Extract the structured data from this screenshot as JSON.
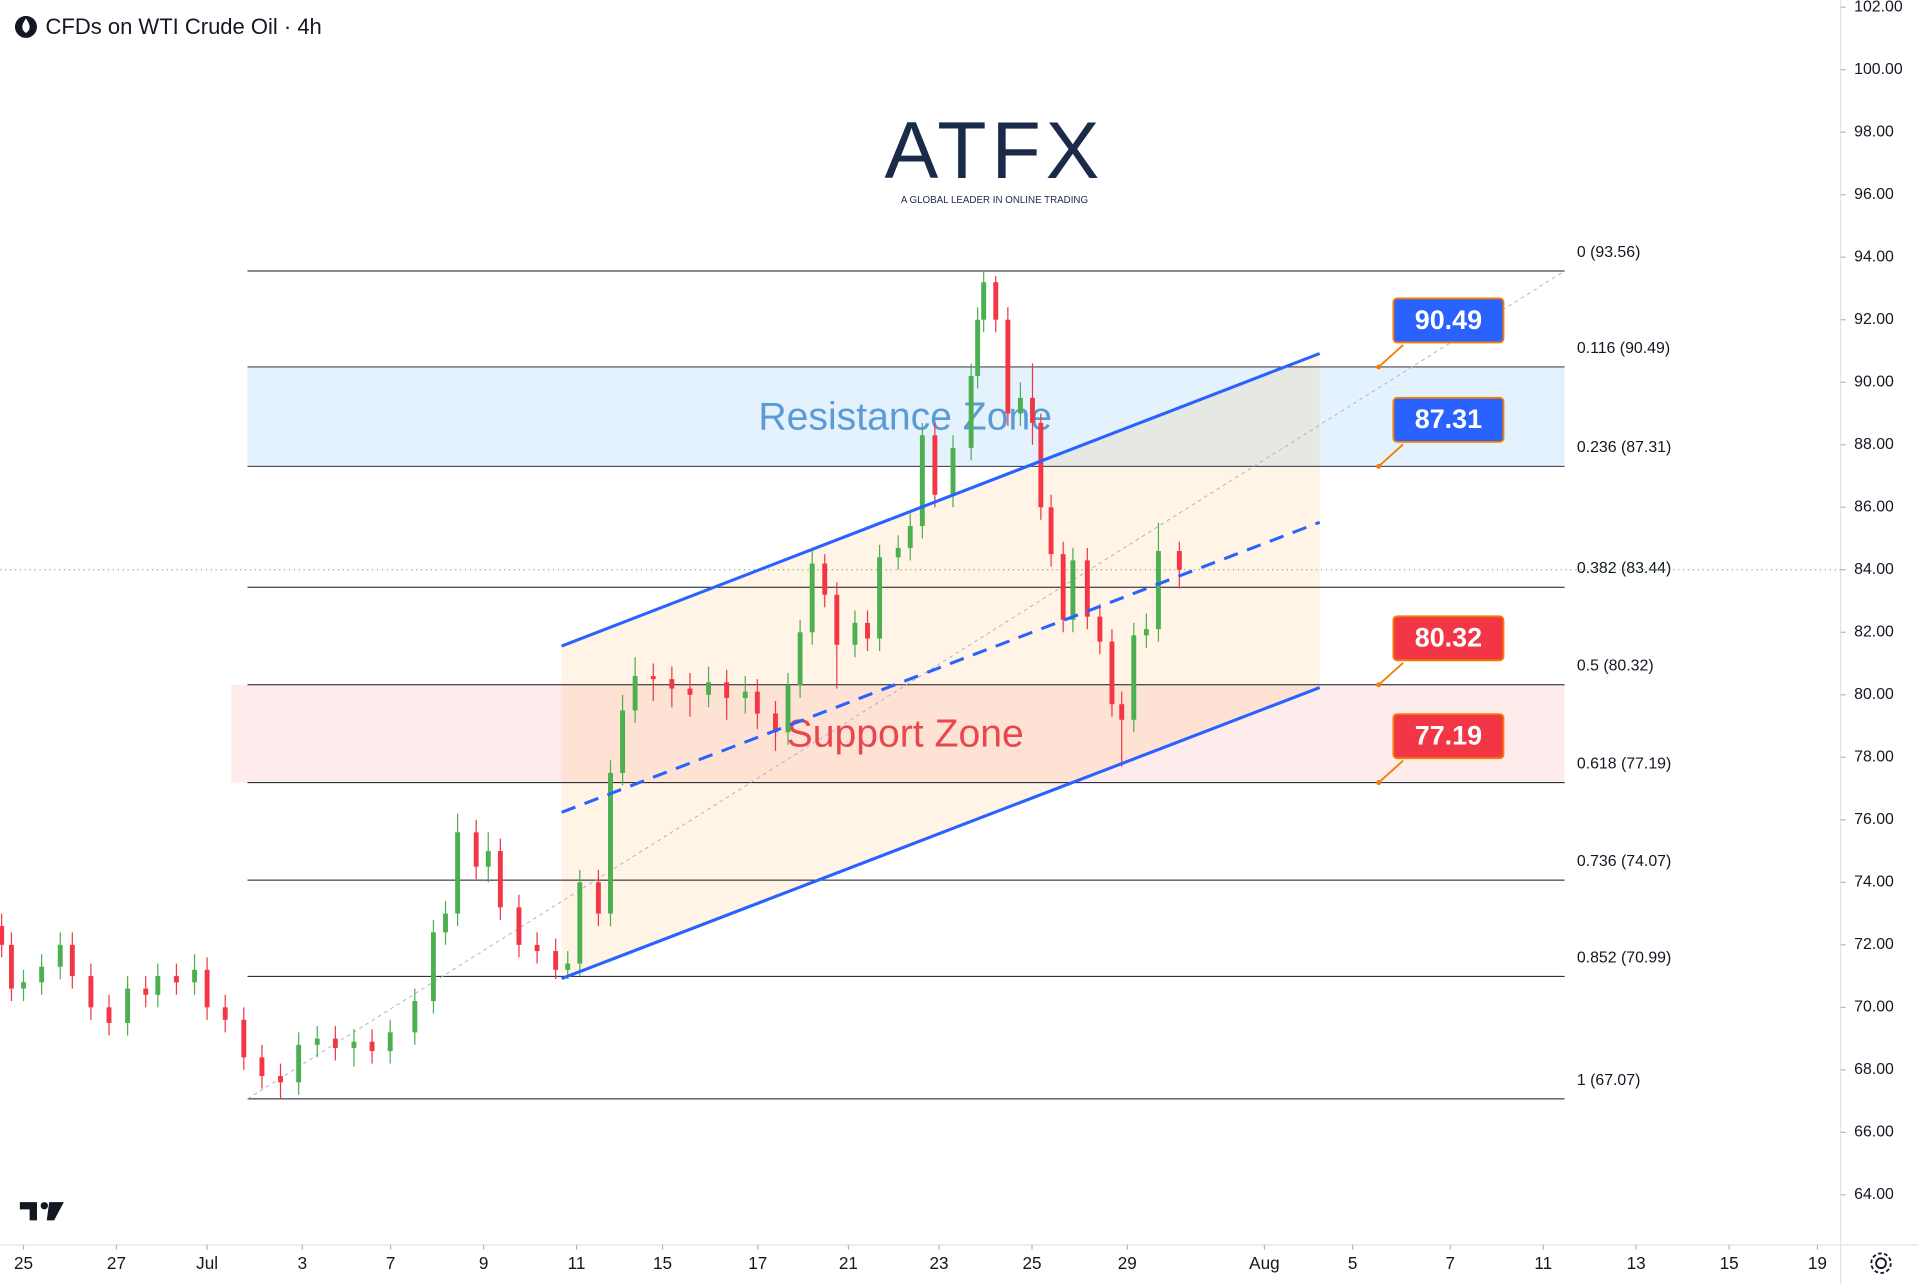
{
  "chart_data": {
    "type": "candlestick",
    "title": "CFDs on WTI Crude Oil · 4h",
    "logo": {
      "name": "ATFX",
      "tagline": "A GLOBAL LEADER IN ONLINE TRADING"
    },
    "up_color": "#4caf50",
    "down_color": "#f23645",
    "x": [
      -0.47,
      -0.26,
      0,
      0.39,
      0.79,
      1.05,
      1.45,
      1.84,
      2.24,
      2.63,
      2.89,
      3.29,
      3.68,
      3.95,
      4.34,
      4.74,
      5.13,
      5.53,
      5.92,
      6.32,
      6.71,
      7.11,
      7.5,
      7.89,
      8.42,
      8.82,
      9.08,
      9.34,
      9.74,
      10,
      10.26,
      10.66,
      11.05,
      11.45,
      11.71,
      11.97,
      12.37,
      12.63,
      12.89,
      13.16,
      13.55,
      13.95,
      14.34,
      14.74,
      15.13,
      15.53,
      15.79,
      16.18,
      16.45,
      16.71,
      16.97,
      17.24,
      17.5,
      17.89,
      18.16,
      18.42,
      18.82,
      19.08,
      19.34,
      19.61,
      20,
      20.39,
      20.53,
      20.66,
      20.92,
      21.18,
      21.45,
      21.71,
      21.89,
      22.11,
      22.37,
      22.58,
      22.89,
      23.16,
      23.42,
      23.63,
      23.89,
      24.16,
      24.42,
      24.87
    ],
    "open": [
      72.6,
      72.0,
      70.6,
      70.8,
      71.3,
      72.0,
      71.0,
      70.0,
      69.5,
      70.6,
      70.4,
      71.0,
      70.8,
      71.2,
      70.0,
      69.6,
      68.4,
      67.8,
      67.6,
      68.8,
      69.0,
      68.7,
      68.9,
      68.6,
      69.2,
      70.2,
      72.4,
      73.0,
      75.6,
      74.5,
      75.0,
      73.2,
      72.0,
      71.8,
      71.2,
      71.4,
      74.0,
      73.0,
      77.5,
      79.5,
      80.6,
      80.5,
      80.2,
      80.0,
      80.4,
      79.9,
      80.1,
      79.4,
      78.8,
      80.3,
      82.0,
      84.2,
      83.2,
      81.6,
      82.3,
      81.8,
      84.4,
      84.7,
      85.4,
      88.3,
      86.4,
      87.9,
      90.2,
      92.0,
      93.2,
      92.0,
      89.0,
      89.5,
      88.7,
      86.0,
      84.5,
      82.4,
      84.3,
      82.5,
      81.7,
      79.7,
      79.2,
      81.9,
      82.1,
      84.6
    ],
    "high": [
      73.0,
      72.4,
      71.2,
      71.7,
      72.4,
      72.4,
      71.4,
      70.4,
      71.0,
      71.0,
      71.4,
      71.4,
      71.7,
      71.6,
      70.4,
      70.0,
      68.8,
      68.2,
      69.2,
      69.4,
      69.4,
      69.3,
      69.3,
      69.6,
      70.6,
      72.8,
      73.4,
      76.2,
      76.0,
      75.6,
      75.4,
      73.6,
      72.4,
      72.2,
      71.8,
      74.4,
      74.4,
      77.9,
      80.0,
      81.2,
      81.0,
      80.9,
      80.7,
      80.9,
      80.8,
      80.6,
      80.5,
      79.8,
      80.7,
      82.4,
      84.6,
      84.5,
      83.6,
      82.7,
      82.7,
      84.8,
      85.1,
      85.8,
      88.7,
      88.7,
      88.3,
      90.6,
      92.4,
      93.56,
      93.4,
      92.4,
      90.0,
      90.6,
      89.0,
      86.4,
      84.9,
      84.7,
      84.7,
      82.9,
      82.1,
      80.1,
      82.3,
      82.6,
      85.5,
      84.9
    ],
    "low": [
      71.6,
      70.2,
      70.2,
      70.4,
      70.9,
      70.6,
      69.6,
      69.1,
      69.1,
      70.0,
      70.0,
      70.4,
      70.4,
      69.6,
      69.2,
      68.0,
      67.4,
      67.07,
      67.2,
      68.4,
      68.3,
      68.1,
      68.2,
      68.2,
      68.8,
      69.8,
      72.0,
      72.6,
      74.1,
      74.0,
      72.8,
      71.6,
      71.4,
      70.9,
      70.9,
      71.0,
      72.6,
      72.6,
      77.1,
      79.1,
      79.8,
      79.6,
      79.3,
      79.6,
      79.2,
      79.4,
      78.9,
      78.2,
      78.4,
      79.9,
      81.6,
      82.8,
      80.2,
      81.2,
      81.4,
      81.4,
      84.0,
      84.3,
      85.0,
      86.0,
      86.0,
      87.5,
      89.8,
      91.6,
      91.6,
      88.6,
      88.6,
      88.0,
      85.6,
      84.1,
      82.0,
      82.0,
      82.1,
      81.3,
      79.3,
      77.7,
      78.8,
      81.5,
      81.7,
      83.4
    ],
    "close": [
      72.0,
      70.6,
      70.8,
      71.3,
      72.0,
      71.0,
      70.0,
      69.5,
      70.6,
      70.4,
      71.0,
      70.8,
      71.2,
      70.0,
      69.6,
      68.4,
      67.8,
      67.6,
      68.8,
      69.0,
      68.7,
      68.9,
      68.6,
      69.2,
      70.2,
      72.4,
      73.0,
      75.6,
      74.5,
      75.0,
      73.2,
      72.0,
      71.8,
      71.2,
      71.4,
      74.0,
      73.0,
      77.5,
      79.5,
      80.6,
      80.5,
      80.2,
      80.0,
      80.4,
      79.9,
      80.1,
      79.4,
      78.8,
      80.3,
      82.0,
      84.2,
      83.2,
      81.6,
      82.3,
      81.8,
      84.4,
      84.7,
      85.4,
      88.3,
      86.4,
      87.9,
      90.2,
      92.0,
      93.2,
      92.0,
      89.0,
      89.5,
      88.7,
      86.0,
      84.5,
      82.4,
      84.3,
      82.5,
      81.7,
      79.7,
      79.2,
      81.9,
      82.1,
      84.6,
      84.0
    ],
    "xlim": [
      -0.5,
      39.1
    ],
    "ylim": [
      62.4,
      102.23
    ],
    "xticks": [
      {
        "value": 0,
        "label": "25"
      },
      {
        "value": 2,
        "label": "27"
      },
      {
        "value": 3.95,
        "label": "Jul"
      },
      {
        "value": 6,
        "label": "3"
      },
      {
        "value": 7.9,
        "label": "7"
      },
      {
        "value": 9.9,
        "label": "9"
      },
      {
        "value": 11.9,
        "label": "11"
      },
      {
        "value": 13.75,
        "label": "15"
      },
      {
        "value": 15.8,
        "label": "17"
      },
      {
        "value": 17.75,
        "label": "21"
      },
      {
        "value": 19.7,
        "label": "23"
      },
      {
        "value": 21.7,
        "label": "25"
      },
      {
        "value": 23.75,
        "label": "29"
      },
      {
        "value": 26.7,
        "label": "Aug"
      },
      {
        "value": 28.6,
        "label": "5"
      },
      {
        "value": 30.7,
        "label": "7"
      },
      {
        "value": 32.7,
        "label": "11"
      },
      {
        "value": 34.7,
        "label": "13"
      },
      {
        "value": 36.7,
        "label": "15"
      },
      {
        "value": 38.6,
        "label": "19"
      }
    ],
    "yticks": [
      {
        "value": 64,
        "label": "64.00"
      },
      {
        "value": 66,
        "label": "66.00"
      },
      {
        "value": 68,
        "label": "68.00"
      },
      {
        "value": 70,
        "label": "70.00"
      },
      {
        "value": 72,
        "label": "72.00"
      },
      {
        "value": 74,
        "label": "74.00"
      },
      {
        "value": 76,
        "label": "76.00"
      },
      {
        "value": 78,
        "label": "78.00"
      },
      {
        "value": 80,
        "label": "80.00"
      },
      {
        "value": 82,
        "label": "82.00"
      },
      {
        "value": 84,
        "label": "84.00"
      },
      {
        "value": 86,
        "label": "86.00"
      },
      {
        "value": 88,
        "label": "88.00"
      },
      {
        "value": 90,
        "label": "90.00"
      },
      {
        "value": 92,
        "label": "92.00"
      },
      {
        "value": 94,
        "label": "94.00"
      },
      {
        "value": 96,
        "label": "96.00"
      },
      {
        "value": 98,
        "label": "98.00"
      },
      {
        "value": 100,
        "label": "100.00"
      },
      {
        "value": 102,
        "label": "102.00"
      }
    ],
    "fib": {
      "x": [
        4.82,
        33.16
      ],
      "levels": [
        {
          "value": 93.56,
          "label": "0 (93.56)"
        },
        {
          "value": 90.49,
          "label": "0.116 (90.49)"
        },
        {
          "value": 87.31,
          "label": "0.236 (87.31)"
        },
        {
          "value": 83.44,
          "label": "0.382 (83.44)"
        },
        {
          "value": 80.32,
          "label": "0.5 (80.32)"
        },
        {
          "value": 77.19,
          "label": "0.618 (77.19)"
        },
        {
          "value": 74.07,
          "label": "0.736 (74.07)"
        },
        {
          "value": 70.99,
          "label": "0.852 (70.99)"
        },
        {
          "value": 67.07,
          "label": "1 (67.07)"
        }
      ]
    },
    "zones": [
      {
        "name": "Resistance Zone",
        "x": [
          4.82,
          33.16
        ],
        "range": [
          87.31,
          90.49
        ],
        "fill": "rgba(33,150,243,0.12)",
        "text_color": "#5b9bd5"
      },
      {
        "name": "Support Zone",
        "x": [
          4.47,
          33.16
        ],
        "range": [
          77.19,
          80.32
        ],
        "fill": "rgba(242,54,69,0.1)",
        "text_color": "#e8474f"
      }
    ],
    "channel": {
      "x": [
        11.58,
        27.89
      ],
      "upper": [
        81.56,
        90.92
      ],
      "middle": [
        76.24,
        85.52
      ],
      "lower": [
        70.92,
        80.23
      ],
      "color": "#2962ff"
    },
    "price_tags": [
      {
        "value": 90.49,
        "color": "#2962ff"
      },
      {
        "value": 87.31,
        "color": "#2962ff"
      },
      {
        "value": 80.32,
        "color": "#f23645"
      },
      {
        "value": 77.19,
        "color": "#f23645"
      }
    ],
    "tag_x": 29.16
  }
}
